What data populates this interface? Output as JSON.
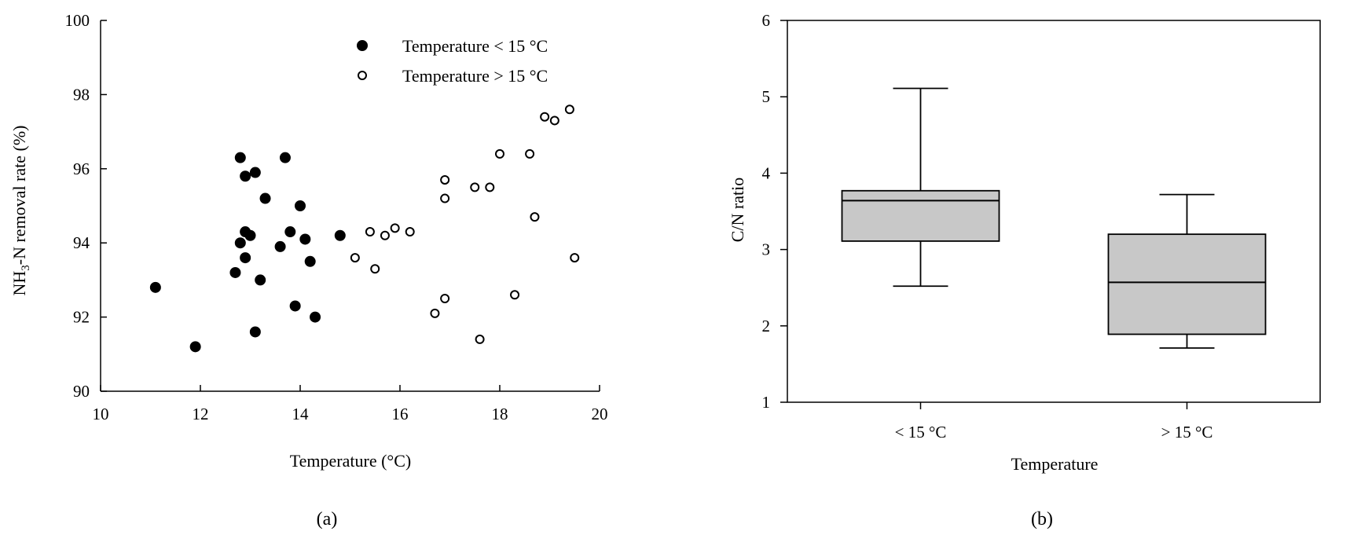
{
  "figure": {
    "panel_a_label": "(a)",
    "panel_b_label": "(b)"
  },
  "chart_data": [
    {
      "type": "scatter",
      "title": "",
      "xlabel": "Temperature (°C)",
      "ylabel": "NH3-N removal rate (%)",
      "ylabel_parts": {
        "pre": "NH",
        "sub": "3",
        "post": "-N removal rate (%)"
      },
      "xlim": [
        10,
        20
      ],
      "ylim": [
        90,
        100
      ],
      "xticks": [
        10,
        12,
        14,
        16,
        18,
        20
      ],
      "yticks": [
        90,
        92,
        94,
        96,
        98,
        100
      ],
      "legend_position": "top-right",
      "series": [
        {
          "name": "Temperature < 15 °C",
          "marker": "filled-circle",
          "points": [
            [
              11.1,
              92.8
            ],
            [
              11.9,
              91.2
            ],
            [
              12.7,
              93.2
            ],
            [
              12.8,
              96.3
            ],
            [
              12.8,
              94.0
            ],
            [
              12.9,
              94.3
            ],
            [
              12.9,
              93.6
            ],
            [
              12.9,
              95.8
            ],
            [
              13.0,
              94.2
            ],
            [
              13.1,
              95.9
            ],
            [
              13.1,
              91.6
            ],
            [
              13.2,
              93.0
            ],
            [
              13.3,
              95.2
            ],
            [
              13.6,
              93.9
            ],
            [
              13.7,
              96.3
            ],
            [
              13.8,
              94.3
            ],
            [
              13.9,
              92.3
            ],
            [
              14.0,
              95.0
            ],
            [
              14.1,
              94.1
            ],
            [
              14.2,
              93.5
            ],
            [
              14.3,
              92.0
            ],
            [
              14.8,
              94.2
            ]
          ]
        },
        {
          "name": "Temperature > 15 °C",
          "marker": "open-circle",
          "points": [
            [
              15.1,
              93.6
            ],
            [
              15.4,
              94.3
            ],
            [
              15.5,
              93.3
            ],
            [
              15.7,
              94.2
            ],
            [
              15.9,
              94.4
            ],
            [
              16.2,
              94.3
            ],
            [
              16.7,
              92.1
            ],
            [
              16.9,
              95.7
            ],
            [
              16.9,
              95.2
            ],
            [
              16.9,
              92.5
            ],
            [
              17.5,
              95.5
            ],
            [
              17.6,
              91.4
            ],
            [
              17.8,
              95.5
            ],
            [
              18.0,
              96.4
            ],
            [
              18.3,
              92.6
            ],
            [
              18.6,
              96.4
            ],
            [
              18.7,
              94.7
            ],
            [
              18.9,
              97.4
            ],
            [
              19.1,
              97.3
            ],
            [
              19.4,
              97.6
            ],
            [
              19.5,
              93.6
            ]
          ]
        }
      ]
    },
    {
      "type": "box",
      "title": "",
      "xlabel": "Temperature",
      "ylabel": "C/N ratio",
      "ylim": [
        1,
        6
      ],
      "yticks": [
        1,
        2,
        3,
        4,
        5,
        6
      ],
      "categories": [
        "< 15 °C",
        "> 15 °C"
      ],
      "boxes": [
        {
          "category": "< 15 °C",
          "min": 2.52,
          "q1": 3.11,
          "median": 3.64,
          "q3": 3.77,
          "max": 5.11
        },
        {
          "category": "> 15 °C",
          "min": 1.71,
          "q1": 1.89,
          "median": 2.57,
          "q3": 3.2,
          "max": 3.72
        }
      ],
      "box_color": "#c8c8c8"
    }
  ]
}
